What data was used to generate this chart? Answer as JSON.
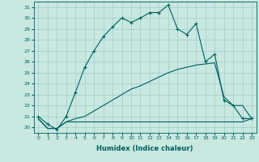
{
  "xlabel": "Humidex (Indice chaleur)",
  "bg_color": "#c8e8e0",
  "line_color": "#006060",
  "grid_color": "#a0cccc",
  "xlim": [
    -0.5,
    23.5
  ],
  "ylim": [
    19.5,
    31.5
  ],
  "xticks": [
    0,
    1,
    2,
    3,
    4,
    5,
    6,
    7,
    8,
    9,
    10,
    11,
    12,
    13,
    14,
    15,
    16,
    17,
    18,
    19,
    20,
    21,
    22,
    23
  ],
  "yticks": [
    20,
    21,
    22,
    23,
    24,
    25,
    26,
    27,
    28,
    29,
    30,
    31
  ],
  "series1_x": [
    0,
    1,
    2,
    3,
    4,
    5,
    6,
    7,
    8,
    9,
    10,
    11,
    12,
    13,
    14,
    15,
    16,
    17,
    18,
    19,
    20,
    21,
    22,
    23
  ],
  "series1_y": [
    21.0,
    20.3,
    19.8,
    21.0,
    23.2,
    25.5,
    27.0,
    28.3,
    29.2,
    30.0,
    29.6,
    30.0,
    30.5,
    30.5,
    31.2,
    29.0,
    28.5,
    29.5,
    26.0,
    26.7,
    22.5,
    22.0,
    20.8,
    20.8
  ],
  "series2_x": [
    0,
    1,
    2,
    3,
    4,
    5,
    6,
    7,
    8,
    9,
    10,
    11,
    12,
    13,
    14,
    15,
    16,
    17,
    18,
    19,
    20,
    21,
    22,
    23
  ],
  "series2_y": [
    20.8,
    19.9,
    19.9,
    20.5,
    20.8,
    21.0,
    21.5,
    22.0,
    22.5,
    23.0,
    23.5,
    23.8,
    24.2,
    24.6,
    25.0,
    25.3,
    25.5,
    25.7,
    25.8,
    25.9,
    22.8,
    22.0,
    22.0,
    20.8
  ],
  "series3_x": [
    0,
    1,
    2,
    3,
    4,
    5,
    6,
    7,
    8,
    9,
    10,
    11,
    12,
    13,
    14,
    15,
    16,
    17,
    18,
    19,
    20,
    21,
    22,
    23
  ],
  "series3_y": [
    20.8,
    19.9,
    19.9,
    20.5,
    20.5,
    20.5,
    20.5,
    20.5,
    20.5,
    20.5,
    20.5,
    20.5,
    20.5,
    20.5,
    20.5,
    20.5,
    20.5,
    20.5,
    20.5,
    20.5,
    20.5,
    20.5,
    20.5,
    20.8
  ]
}
